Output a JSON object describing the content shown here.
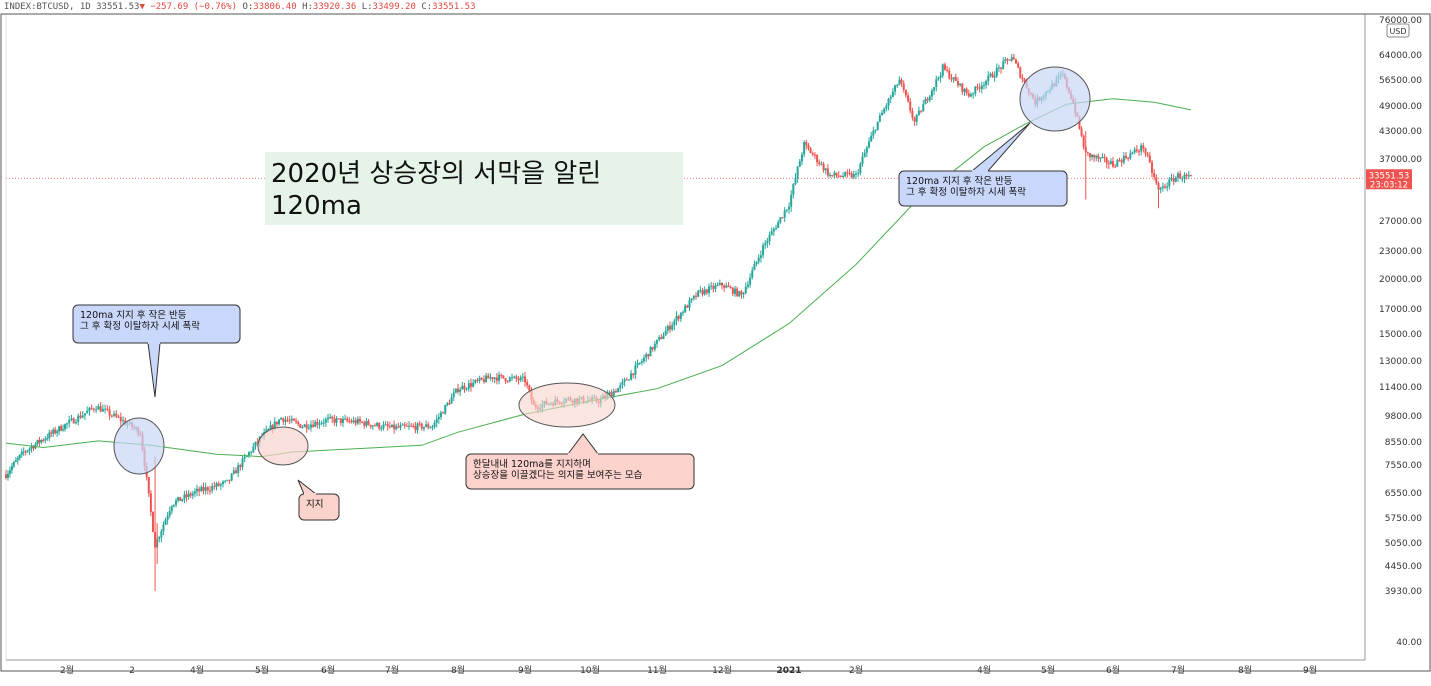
{
  "header": {
    "symbol": "INDEX:BTCUSD, 1D",
    "last": "33551.53",
    "arrow": "▼",
    "change": "−257.69 (−0.76%)",
    "o_label": "O:",
    "o": "33806.40",
    "h_label": "H:",
    "h": "33920.36",
    "l_label": "L:",
    "l": "33499.20",
    "c_label": "C:",
    "c": "33551.53"
  },
  "colors": {
    "up": "#26a69a",
    "down": "#ef5350",
    "ma": "#4caf50",
    "price_tag": "#ef5350",
    "circle_blue": "#c8d6f5",
    "circle_red": "#f6d3cd",
    "note_blue": "#c9d7fb",
    "note_red": "#fbd2cc",
    "headline_bg": "#e6f3e9"
  },
  "chart_data": {
    "type": "candlestick",
    "title": "2020년 상승장의 서막을 알린 120ma",
    "x_ticks": [
      "2월",
      "2",
      "4월",
      "5월",
      "6월",
      "7월",
      "8월",
      "9월",
      "10월",
      "11월",
      "12월",
      "2021",
      "2월",
      "4월",
      "5월",
      "6월",
      "7월",
      "8월",
      "9월"
    ],
    "y_ticks": [
      76000,
      64000,
      56500,
      49000,
      43000,
      37000,
      27000,
      23000,
      20000,
      17000,
      15000,
      13000,
      11400,
      9800,
      8550,
      7550,
      6550,
      5750,
      5050,
      4450,
      3930,
      40
    ],
    "y_tick_labels": [
      "76000.00",
      "64000.00",
      "56500.00",
      "49000.00",
      "43000.00",
      "37000.00",
      "27000.00",
      "23000.00",
      "20000.00",
      "17000.00",
      "15000.00",
      "13000.00",
      "11400.00",
      "9800.00",
      "8550.00",
      "7550.00",
      "6550.00",
      "5750.00",
      "5050.00",
      "4450.00",
      "3930.00",
      "40.00"
    ],
    "y_scale": "log",
    "currency": "USD",
    "last_price": "33551.53",
    "countdown": "23:03:12",
    "price_path": [
      [
        "2020-01-01",
        7200
      ],
      [
        "2020-01-10",
        8100
      ],
      [
        "2020-01-20",
        8700
      ],
      [
        "2020-02-01",
        9400
      ],
      [
        "2020-02-14",
        10300
      ],
      [
        "2020-02-25",
        9600
      ],
      [
        "2020-03-05",
        9000
      ],
      [
        "2020-03-12",
        5000
      ],
      [
        "2020-03-20",
        6200
      ],
      [
        "2020-04-01",
        6600
      ],
      [
        "2020-04-15",
        6900
      ],
      [
        "2020-04-30",
        8700
      ],
      [
        "2020-05-10",
        9700
      ],
      [
        "2020-05-20",
        9300
      ],
      [
        "2020-06-01",
        9600
      ],
      [
        "2020-06-15",
        9500
      ],
      [
        "2020-07-01",
        9200
      ],
      [
        "2020-07-20",
        9300
      ],
      [
        "2020-08-01",
        11300
      ],
      [
        "2020-08-17",
        12000
      ],
      [
        "2020-09-01",
        11800
      ],
      [
        "2020-09-05",
        10300
      ],
      [
        "2020-09-20",
        10700
      ],
      [
        "2020-10-05",
        10600
      ],
      [
        "2020-10-15",
        11400
      ],
      [
        "2020-10-25",
        13000
      ],
      [
        "2020-11-05",
        15200
      ],
      [
        "2020-11-20",
        18500
      ],
      [
        "2020-12-01",
        19400
      ],
      [
        "2020-12-10",
        18300
      ],
      [
        "2020-12-20",
        23500
      ],
      [
        "2021-01-01",
        29500
      ],
      [
        "2021-01-08",
        40000
      ],
      [
        "2021-01-20",
        34000
      ],
      [
        "2021-02-01",
        34000
      ],
      [
        "2021-02-10",
        44000
      ],
      [
        "2021-02-21",
        56500
      ],
      [
        "2021-02-28",
        45000
      ],
      [
        "2021-03-13",
        60000
      ],
      [
        "2021-03-25",
        52000
      ],
      [
        "2021-04-14",
        63500
      ],
      [
        "2021-04-25",
        50000
      ],
      [
        "2021-05-08",
        58000
      ],
      [
        "2021-05-13",
        50000
      ],
      [
        "2021-05-19",
        38000
      ],
      [
        "2021-06-01",
        36000
      ],
      [
        "2021-06-15",
        39500
      ],
      [
        "2021-06-22",
        31500
      ],
      [
        "2021-07-01",
        34000
      ],
      [
        "2021-07-07",
        33551.53
      ]
    ],
    "series": [
      {
        "name": "120ma",
        "points": [
          [
            "2020-01-01",
            8500
          ],
          [
            "2020-01-20",
            8300
          ],
          [
            "2020-02-15",
            8600
          ],
          [
            "2020-03-10",
            8400
          ],
          [
            "2020-04-10",
            8000
          ],
          [
            "2020-05-01",
            7900
          ],
          [
            "2020-05-15",
            8100
          ],
          [
            "2020-06-15",
            8250
          ],
          [
            "2020-07-15",
            8400
          ],
          [
            "2020-08-01",
            9000
          ],
          [
            "2020-09-01",
            9900
          ],
          [
            "2020-10-01",
            10600
          ],
          [
            "2020-11-01",
            11300
          ],
          [
            "2020-12-01",
            12700
          ],
          [
            "2021-01-01",
            15800
          ],
          [
            "2021-02-01",
            21500
          ],
          [
            "2021-03-01",
            30000
          ],
          [
            "2021-04-01",
            39500
          ],
          [
            "2021-04-20",
            44500
          ],
          [
            "2021-05-10",
            49500
          ],
          [
            "2021-06-01",
            51000
          ],
          [
            "2021-06-20",
            50000
          ],
          [
            "2021-07-07",
            48000
          ]
        ]
      }
    ]
  },
  "annotations": {
    "headline": "2020년 상승장의 서막을 알린\n120ma",
    "note1": "120ma 지지 후 작은 반등\n그 후 확정 이탈하자 시세 폭락",
    "note2": "지지",
    "note3": "한달내내 120ma를 지지하며\n상승장을 이끌겠다는 의지를 보여주는 모습",
    "note4": "120ma 지지 후 작은 반등\n그 후 확정 이탈하자 시세 폭락"
  }
}
